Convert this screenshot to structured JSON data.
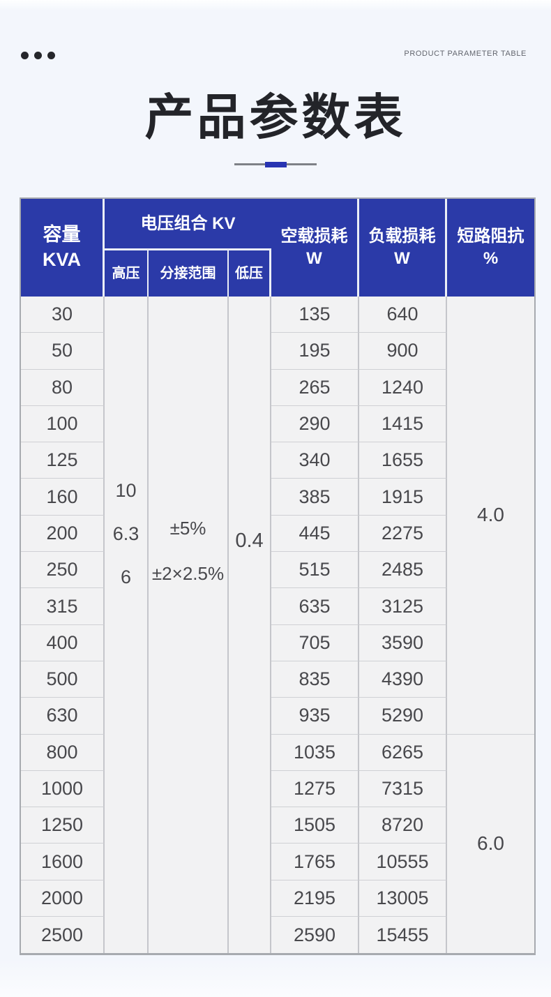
{
  "header_bar": {
    "eyebrow": "PRODUCT PARAMETER TABLE"
  },
  "title": {
    "text": "产品参数表"
  },
  "colors": {
    "header_bg": "#2b3aa8",
    "accent_blue": "#2834b2",
    "table_bg": "#f2f2f3",
    "page_bg": "#f3f6fc"
  },
  "table": {
    "headers": {
      "capacity": [
        "容量",
        "KVA"
      ],
      "voltage_group": "电压组合 KV",
      "high_voltage": "高压",
      "tap_range": "分接范围",
      "low_voltage": "低压",
      "no_load_loss": [
        "空载损耗",
        "W"
      ],
      "load_loss": [
        "负载损耗",
        "W"
      ],
      "impedance": [
        "短路阻抗",
        "%"
      ]
    },
    "merged": {
      "high_voltage_values": [
        "10",
        "6.3",
        "6"
      ],
      "tap_range_values": [
        "±5%",
        "±2×2.5%"
      ],
      "low_voltage_value": "0.4",
      "impedance_values": [
        "4.0",
        "6.0"
      ]
    },
    "rows": [
      {
        "capacity": "30",
        "no_load": "135",
        "load": "640"
      },
      {
        "capacity": "50",
        "no_load": "195",
        "load": "900"
      },
      {
        "capacity": "80",
        "no_load": "265",
        "load": "1240"
      },
      {
        "capacity": "100",
        "no_load": "290",
        "load": "1415"
      },
      {
        "capacity": "125",
        "no_load": "340",
        "load": "1655"
      },
      {
        "capacity": "160",
        "no_load": "385",
        "load": "1915"
      },
      {
        "capacity": "200",
        "no_load": "445",
        "load": "2275"
      },
      {
        "capacity": "250",
        "no_load": "515",
        "load": "2485"
      },
      {
        "capacity": "315",
        "no_load": "635",
        "load": "3125"
      },
      {
        "capacity": "400",
        "no_load": "705",
        "load": "3590"
      },
      {
        "capacity": "500",
        "no_load": "835",
        "load": "4390"
      },
      {
        "capacity": "630",
        "no_load": "935",
        "load": "5290"
      },
      {
        "capacity": "800",
        "no_load": "1035",
        "load": "6265"
      },
      {
        "capacity": "1000",
        "no_load": "1275",
        "load": "7315"
      },
      {
        "capacity": "1250",
        "no_load": "1505",
        "load": "8720"
      },
      {
        "capacity": "1600",
        "no_load": "1765",
        "load": "10555"
      },
      {
        "capacity": "2000",
        "no_load": "2195",
        "load": "13005"
      },
      {
        "capacity": "2500",
        "no_load": "2590",
        "load": "15455"
      }
    ]
  }
}
